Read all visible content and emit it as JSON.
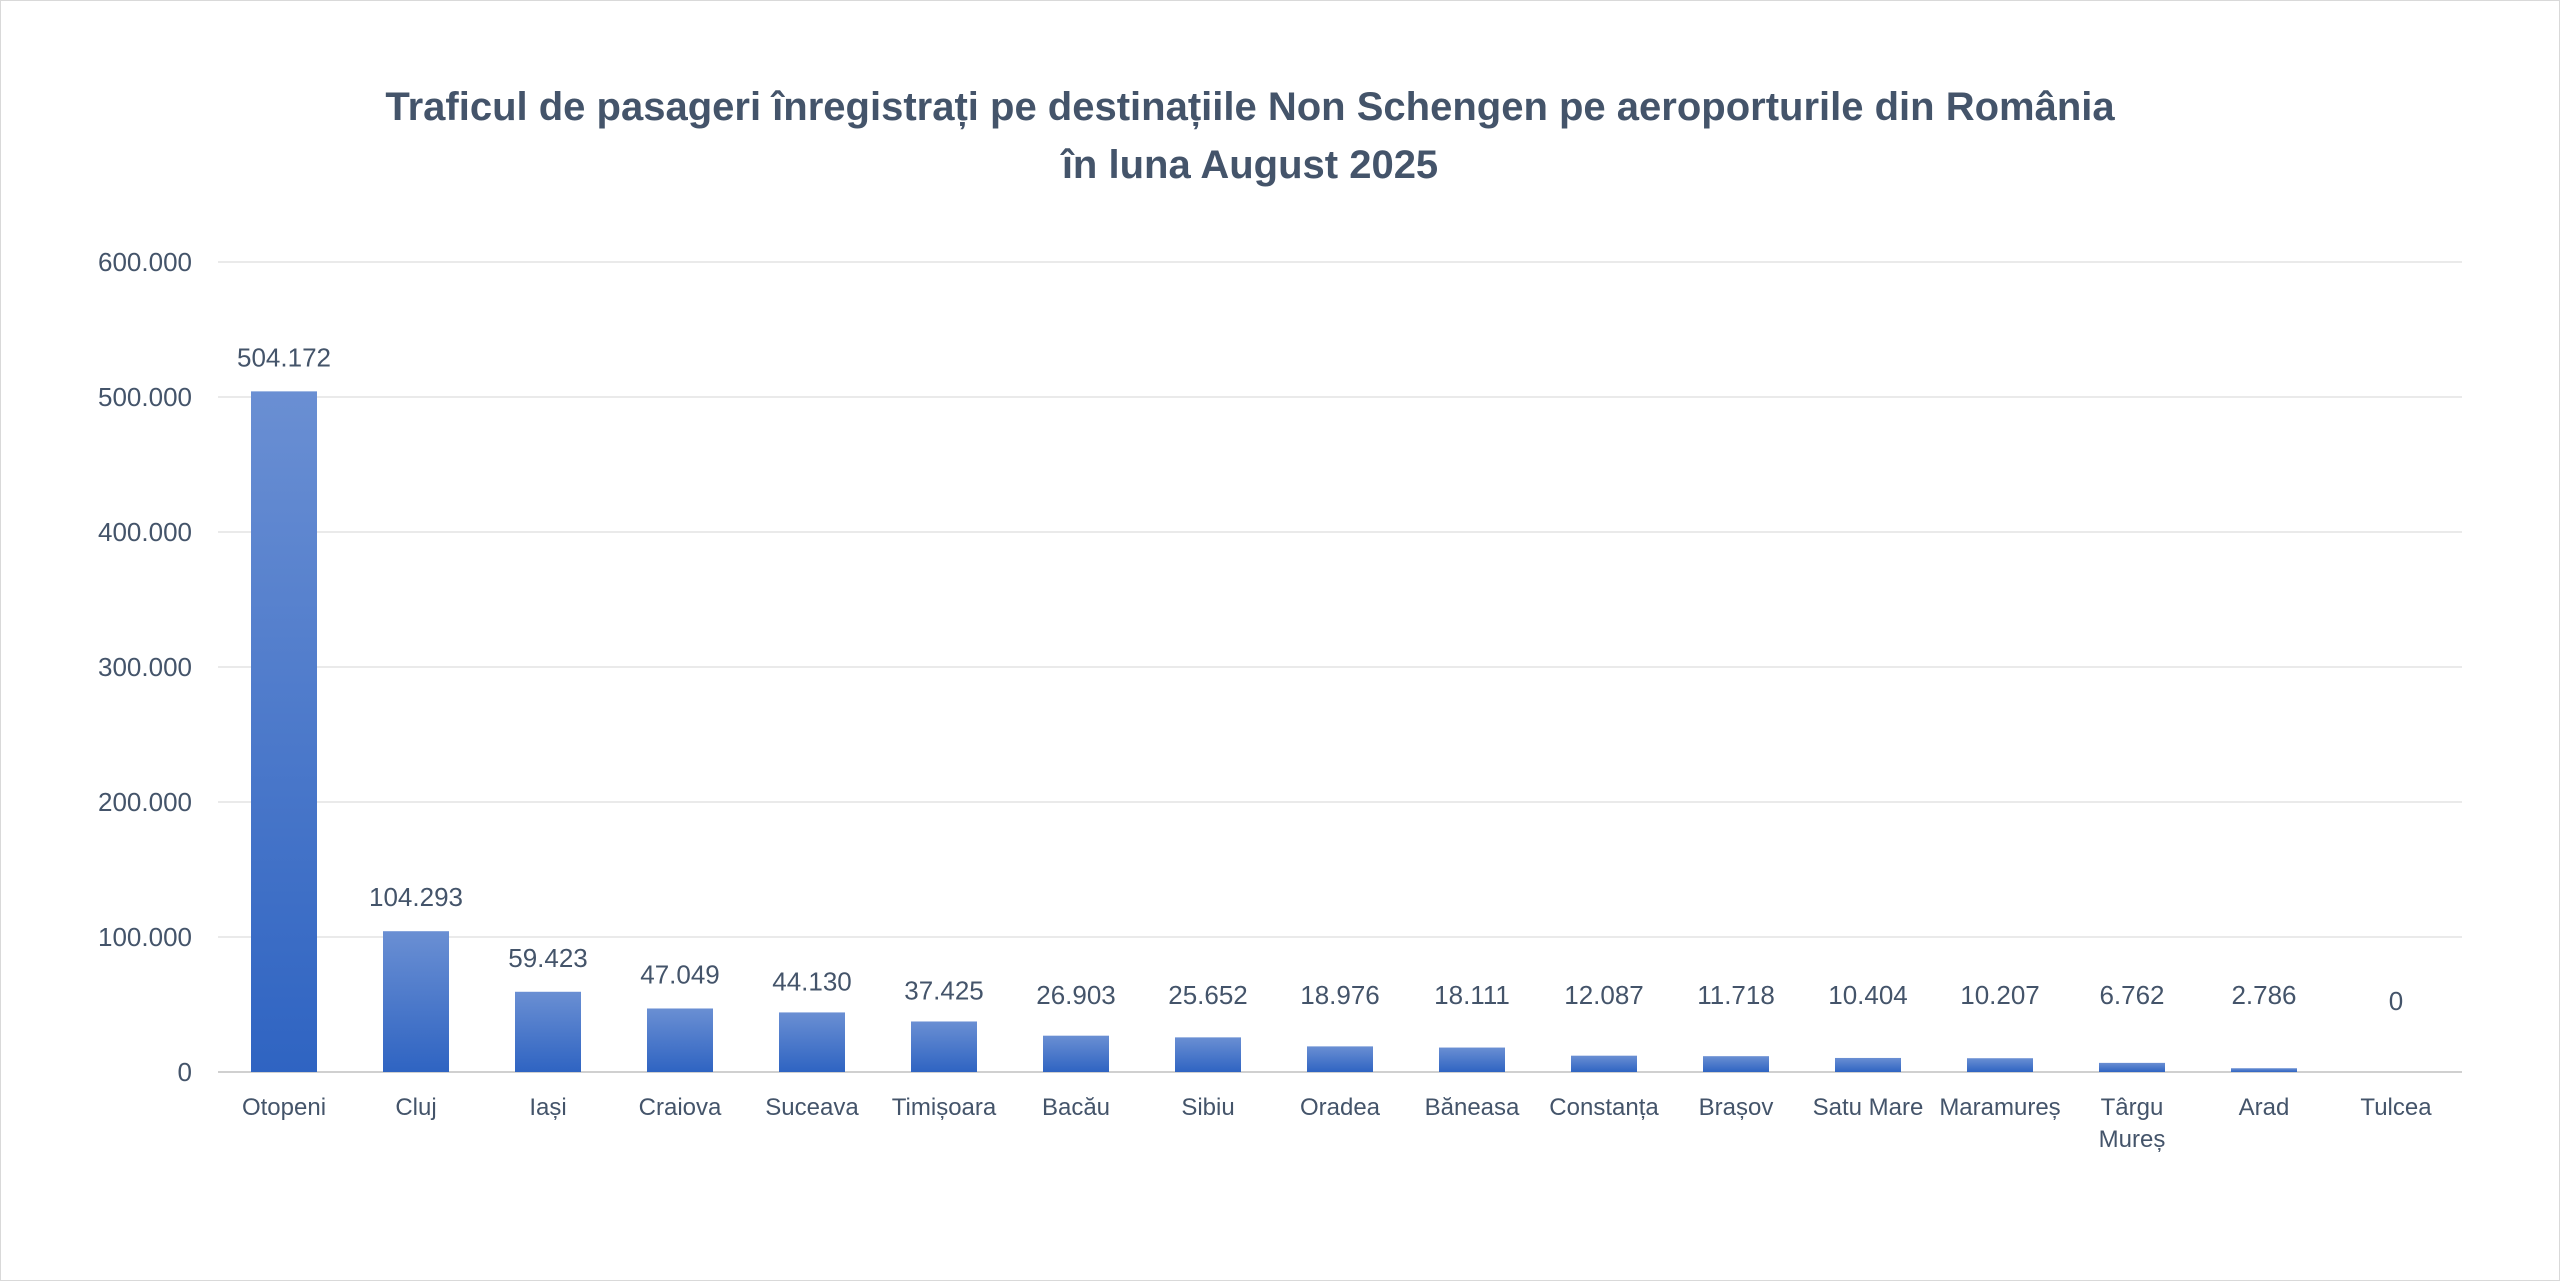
{
  "chart_data": {
    "type": "bar",
    "title_line1": "Traficul de pasageri înregistrați pe destinațiile Non Schengen pe aeroporturile din România",
    "title_line2": "în luna August 2025",
    "categories": [
      [
        "Otopeni"
      ],
      [
        "Cluj"
      ],
      [
        "Iași"
      ],
      [
        "Craiova"
      ],
      [
        "Suceava"
      ],
      [
        "Timișoara"
      ],
      [
        "Bacău"
      ],
      [
        "Sibiu"
      ],
      [
        "Oradea"
      ],
      [
        "Băneasa"
      ],
      [
        "Constanța"
      ],
      [
        "Brașov"
      ],
      [
        "Satu Mare"
      ],
      [
        "Maramureș"
      ],
      [
        "Târgu",
        "Mureș"
      ],
      [
        "Arad"
      ],
      [
        "Tulcea"
      ]
    ],
    "values": [
      504172,
      104293,
      59423,
      47049,
      44130,
      37425,
      26903,
      25652,
      18976,
      18111,
      12087,
      11718,
      10404,
      10207,
      6762,
      2786,
      0
    ],
    "data_labels": [
      "504.172",
      "104.293",
      "59.423",
      "47.049",
      "44.130",
      "37.425",
      "26.903",
      "25.652",
      "18.976",
      "18.111",
      "12.087",
      "11.718",
      "10.404",
      "10.207",
      "6.762",
      "2.786",
      "0"
    ],
    "yticks": [
      0,
      100000,
      200000,
      300000,
      400000,
      500000,
      600000
    ],
    "ytick_labels": [
      "0",
      "100.000",
      "200.000",
      "300.000",
      "400.000",
      "500.000",
      "600.000"
    ],
    "ylim": [
      0,
      600000
    ],
    "grid": true,
    "legend": "none",
    "colors": {
      "bar_top": "#6a8fd3",
      "bar_bottom": "#2f64c2",
      "text": "#44546a",
      "grid": "#e3e3e3"
    }
  }
}
